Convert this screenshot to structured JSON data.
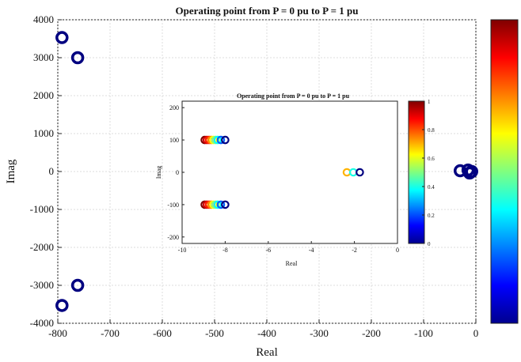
{
  "chart_data": [
    {
      "type": "scatter",
      "title": "Operating point from P = 0 pu to P = 1 pu",
      "xlabel": "Real",
      "ylabel": "Imag",
      "xlim": [
        -800,
        0
      ],
      "ylim": [
        -4000,
        4000
      ],
      "xticks": [
        -800,
        -700,
        -600,
        -500,
        -400,
        -300,
        -200,
        -100,
        0
      ],
      "yticks": [
        4000,
        3000,
        2000,
        1000,
        0,
        -1000,
        -2000,
        -3000,
        -4000
      ],
      "grid": true,
      "colorbar": {
        "range": [
          0,
          1
        ],
        "colormap": "jet",
        "tick_labels_clipped": true
      },
      "points": [
        {
          "x": -792,
          "y": 3530,
          "c": 0.0
        },
        {
          "x": -762,
          "y": 3000,
          "c": 0.0
        },
        {
          "x": -762,
          "y": -3000,
          "c": 0.0
        },
        {
          "x": -792,
          "y": -3530,
          "c": 0.0
        },
        {
          "x": -30,
          "y": 20,
          "c": 0.0
        },
        {
          "x": -15,
          "y": 40,
          "c": 0.0
        },
        {
          "x": -12,
          "y": -40,
          "c": 0.0
        },
        {
          "x": -8,
          "y": 0,
          "c": 0.0
        }
      ]
    },
    {
      "type": "scatter",
      "title": "Operating point from P = 0 pu to P = 1 pu",
      "xlabel": "Real",
      "ylabel": "Imag",
      "xlim": [
        -10,
        0
      ],
      "ylim": [
        -220,
        220
      ],
      "xticks": [
        -10,
        -8,
        -6,
        -4,
        -2,
        0
      ],
      "yticks": [
        200,
        100,
        0,
        -100,
        -200
      ],
      "grid": false,
      "colorbar": {
        "range": [
          0,
          1
        ],
        "colormap": "jet",
        "ticks": [
          "1",
          "0.8",
          "0.6",
          "0.4",
          "0.2",
          "0"
        ]
      },
      "points": [
        {
          "x": -8.95,
          "y": 100,
          "c": 1.0
        },
        {
          "x": -8.85,
          "y": 100,
          "c": 0.92
        },
        {
          "x": -8.75,
          "y": 100,
          "c": 0.85
        },
        {
          "x": -8.65,
          "y": 100,
          "c": 0.75
        },
        {
          "x": -8.55,
          "y": 100,
          "c": 0.62
        },
        {
          "x": -8.45,
          "y": 100,
          "c": 0.5
        },
        {
          "x": -8.35,
          "y": 100,
          "c": 0.38
        },
        {
          "x": -8.2,
          "y": 100,
          "c": 0.22
        },
        {
          "x": -8.0,
          "y": 100,
          "c": 0.0
        },
        {
          "x": -8.95,
          "y": -100,
          "c": 1.0
        },
        {
          "x": -8.85,
          "y": -100,
          "c": 0.92
        },
        {
          "x": -8.75,
          "y": -100,
          "c": 0.85
        },
        {
          "x": -8.65,
          "y": -100,
          "c": 0.75
        },
        {
          "x": -8.55,
          "y": -100,
          "c": 0.62
        },
        {
          "x": -8.45,
          "y": -100,
          "c": 0.5
        },
        {
          "x": -8.35,
          "y": -100,
          "c": 0.38
        },
        {
          "x": -8.2,
          "y": -100,
          "c": 0.22
        },
        {
          "x": -8.0,
          "y": -100,
          "c": 0.0
        },
        {
          "x": -2.35,
          "y": 0,
          "c": 0.7
        },
        {
          "x": -2.05,
          "y": 0,
          "c": 0.4
        },
        {
          "x": -1.75,
          "y": 0,
          "c": 0.0
        }
      ]
    }
  ]
}
